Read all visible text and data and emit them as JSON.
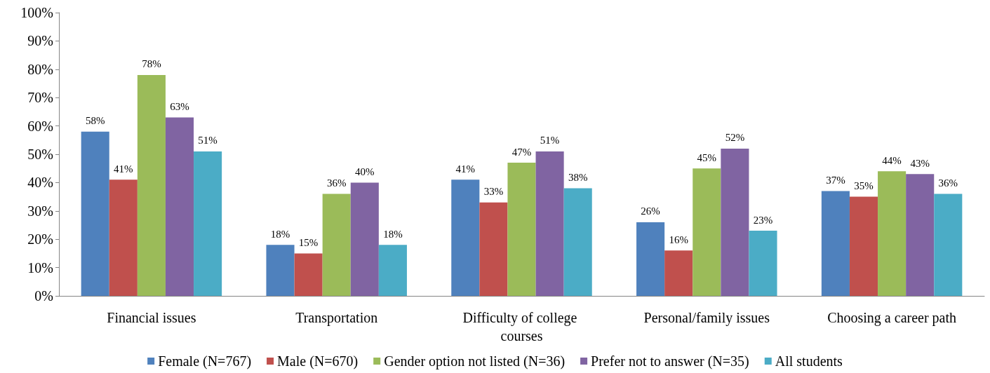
{
  "chart_data": {
    "type": "bar",
    "categories": [
      "Financial issues",
      "Transportation",
      "Difficulty of college courses",
      "Personal/family issues",
      "Choosing a career path"
    ],
    "series": [
      {
        "name": "Female (N=767)",
        "color": "#4f81bd",
        "values": [
          58,
          18,
          41,
          26,
          37
        ],
        "value_labels": [
          "58%",
          "18%",
          "41%",
          "26%",
          "37%"
        ]
      },
      {
        "name": "Male (N=670)",
        "color": "#c0504d",
        "values": [
          41,
          15,
          33,
          16,
          35
        ],
        "value_labels": [
          "41%",
          "15%",
          "33%",
          "16%",
          "35%"
        ]
      },
      {
        "name": "Gender option not listed (N=36)",
        "color": "#9bbb59",
        "values": [
          78,
          36,
          47,
          45,
          44
        ],
        "value_labels": [
          "78%",
          "36%",
          "47%",
          "45%",
          "44%"
        ]
      },
      {
        "name": "Prefer not to answer (N=35)",
        "color": "#8064a2",
        "values": [
          63,
          40,
          51,
          52,
          43
        ],
        "value_labels": [
          "63%",
          "40%",
          "51%",
          "52%",
          "43%"
        ]
      },
      {
        "name": "All students",
        "color": "#4bacc6",
        "values": [
          51,
          18,
          38,
          23,
          36
        ],
        "value_labels": [
          "51%",
          "18%",
          "38%",
          "23%",
          "36%"
        ]
      }
    ],
    "ylim": [
      0,
      100
    ],
    "yticks": [
      {
        "value": 0,
        "label": "0%"
      },
      {
        "value": 10,
        "label": "10%"
      },
      {
        "value": 20,
        "label": "20%"
      },
      {
        "value": 30,
        "label": "30%"
      },
      {
        "value": 40,
        "label": "40%"
      },
      {
        "value": 50,
        "label": "50%"
      },
      {
        "value": 60,
        "label": "60%"
      },
      {
        "value": 70,
        "label": "70%"
      },
      {
        "value": 80,
        "label": "80%"
      },
      {
        "value": 90,
        "label": "90%"
      },
      {
        "value": 100,
        "label": "100%"
      }
    ],
    "grid": false,
    "legend": "bottom"
  }
}
